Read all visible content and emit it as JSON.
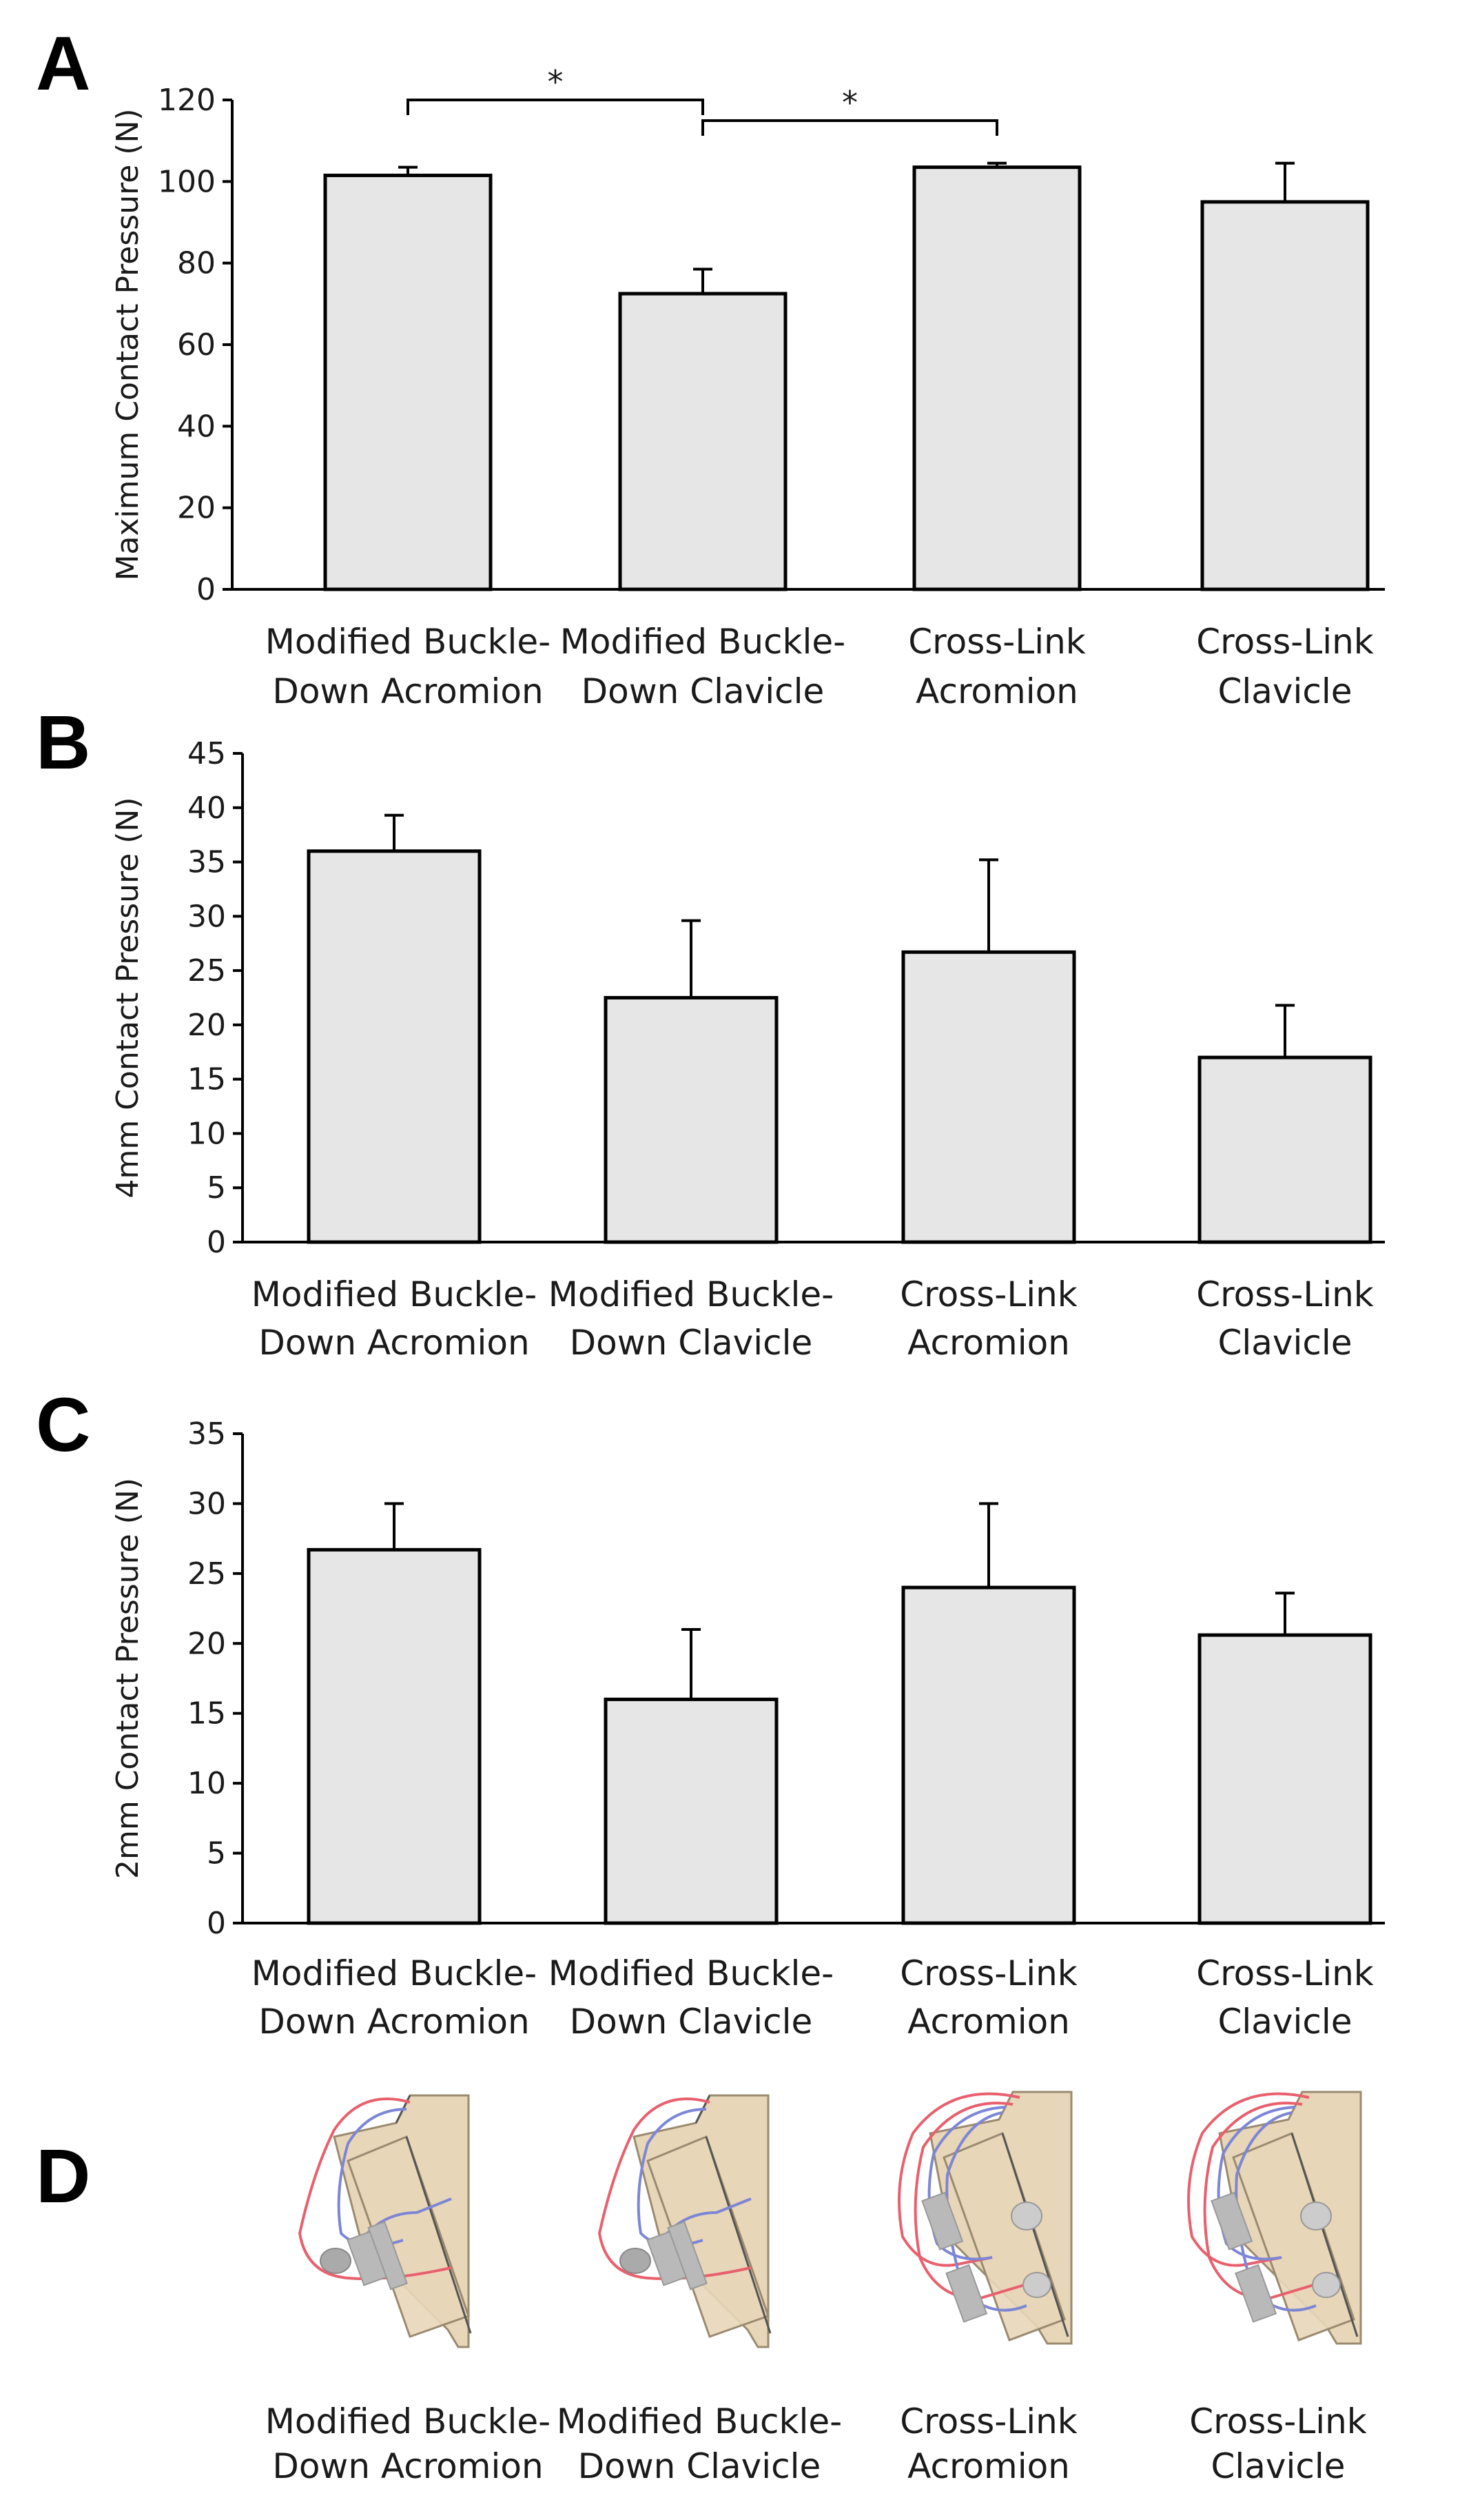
{
  "chart_data": [
    {
      "panel": "A",
      "type": "bar",
      "ylabel": "Maximum Contact Pressure (N)",
      "ylim": [
        0,
        120
      ],
      "ticks": [
        0,
        20,
        40,
        60,
        80,
        100,
        120
      ],
      "categories": [
        [
          "Modified Buckle-",
          "Down Acromion"
        ],
        [
          "Modified Buckle-",
          "Down Clavicle"
        ],
        [
          "Cross-Link",
          "Acromion"
        ],
        [
          "Cross-Link",
          "Clavicle"
        ]
      ],
      "values": [
        101.5,
        72.5,
        103.5,
        95
      ],
      "errors": [
        2,
        6,
        1,
        9.5
      ],
      "significance": [
        {
          "from": 0,
          "to": 1,
          "label": "*"
        },
        {
          "from": 1,
          "to": 2,
          "label": "*"
        }
      ]
    },
    {
      "panel": "B",
      "type": "bar",
      "ylabel": "4mm Contact Pressure (N)",
      "ylim": [
        0,
        45
      ],
      "ticks": [
        0,
        5,
        10,
        15,
        20,
        25,
        30,
        35,
        40,
        45
      ],
      "categories": [
        [
          "Modified Buckle-",
          "Down Acromion"
        ],
        [
          "Modified Buckle-",
          "Down Clavicle"
        ],
        [
          "Cross-Link",
          "Acromion"
        ],
        [
          "Cross-Link",
          "Clavicle"
        ]
      ],
      "values": [
        36,
        22.5,
        26.7,
        17
      ],
      "errors": [
        3.3,
        7.1,
        8.5,
        4.8
      ],
      "significance": []
    },
    {
      "panel": "C",
      "type": "bar",
      "ylabel": "2mm Contact Pressure (N)",
      "ylim": [
        0,
        35
      ],
      "ticks": [
        0,
        5,
        10,
        15,
        20,
        25,
        30,
        35
      ],
      "categories": [
        [
          "Modified Buckle-",
          "Down Acromion"
        ],
        [
          "Modified Buckle-",
          "Down Clavicle"
        ],
        [
          "Cross-Link",
          "Acromion"
        ],
        [
          "Cross-Link",
          "Clavicle"
        ]
      ],
      "values": [
        26.7,
        16,
        24,
        20.6
      ],
      "errors": [
        3.3,
        5,
        6,
        3
      ],
      "significance": []
    }
  ],
  "panel_d": {
    "panel": "D",
    "illustrations": [
      "modified-buckle-down-acromion",
      "modified-buckle-down-clavicle",
      "cross-link-acromion",
      "cross-link-clavicle"
    ],
    "captions": [
      [
        "Modified Buckle-",
        "Down Acromion"
      ],
      [
        "Modified Buckle-",
        "Down Clavicle"
      ],
      [
        "Cross-Link",
        "Acromion"
      ],
      [
        "Cross-Link",
        "Clavicle"
      ]
    ]
  }
}
